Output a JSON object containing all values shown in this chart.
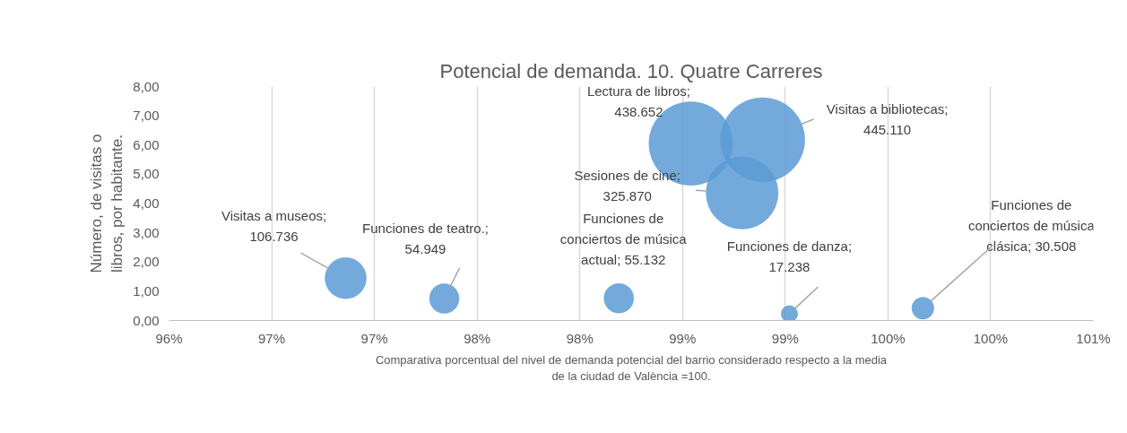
{
  "chart_data": {
    "type": "bubble",
    "title": "Potencial de demanda. 10. Quatre Carreres",
    "xlabel": "Comparativa porcentual del nivel de demanda potencial del barrio considerado respecto a la media de la ciudad de València =100.",
    "ylabel": "Número, de visitas o libros, por habitante.",
    "x": [
      96.86,
      97.34,
      98.19,
      99.02,
      99.67,
      98.54,
      98.89,
      98.79
    ],
    "values": [
      1.45,
      0.75,
      0.76,
      0.23,
      0.42,
      6.05,
      6.18,
      4.36
    ],
    "sizes": [
      106736,
      54949,
      55132,
      17238,
      30508,
      438652,
      445110,
      325870
    ],
    "value_labels": [
      "Visitas a museos; 106.736",
      "Funciones de teatro.; 54.949",
      "Funciones de conciertos de música actual; 55.132",
      "Funciones de danza; 17.238",
      "Funciones de conciertos de música clásica; 30.508",
      "Lectura de libros; 438.652",
      "Visitas a bibliotecas; 445.110",
      "Sesiones de cine; 325.870"
    ],
    "color": "#5b9bd5",
    "xlim": [
      96,
      100.5
    ],
    "xticks": [
      {
        "value": 96,
        "label": "96%"
      },
      {
        "value": 96.5,
        "label": "97%"
      },
      {
        "value": 97,
        "label": "97%"
      },
      {
        "value": 97.5,
        "label": "98%"
      },
      {
        "value": 98,
        "label": "98%"
      },
      {
        "value": 98.5,
        "label": "99%"
      },
      {
        "value": 99,
        "label": "99%"
      },
      {
        "value": 99.5,
        "label": "100%"
      },
      {
        "value": 100,
        "label": "100%"
      },
      {
        "value": 100.5,
        "label": "101%"
      }
    ],
    "ylim": [
      0,
      8
    ],
    "yticks": [
      {
        "value": 0,
        "label": "0,00"
      },
      {
        "value": 1,
        "label": "1,00"
      },
      {
        "value": 2,
        "label": "2,00"
      },
      {
        "value": 3,
        "label": "3,00"
      },
      {
        "value": 4,
        "label": "4,00"
      },
      {
        "value": 5,
        "label": "5,00"
      },
      {
        "value": 6,
        "label": "6,00"
      },
      {
        "value": 7,
        "label": "7,00"
      },
      {
        "value": 8,
        "label": "8,00"
      }
    ],
    "grid": "x"
  }
}
